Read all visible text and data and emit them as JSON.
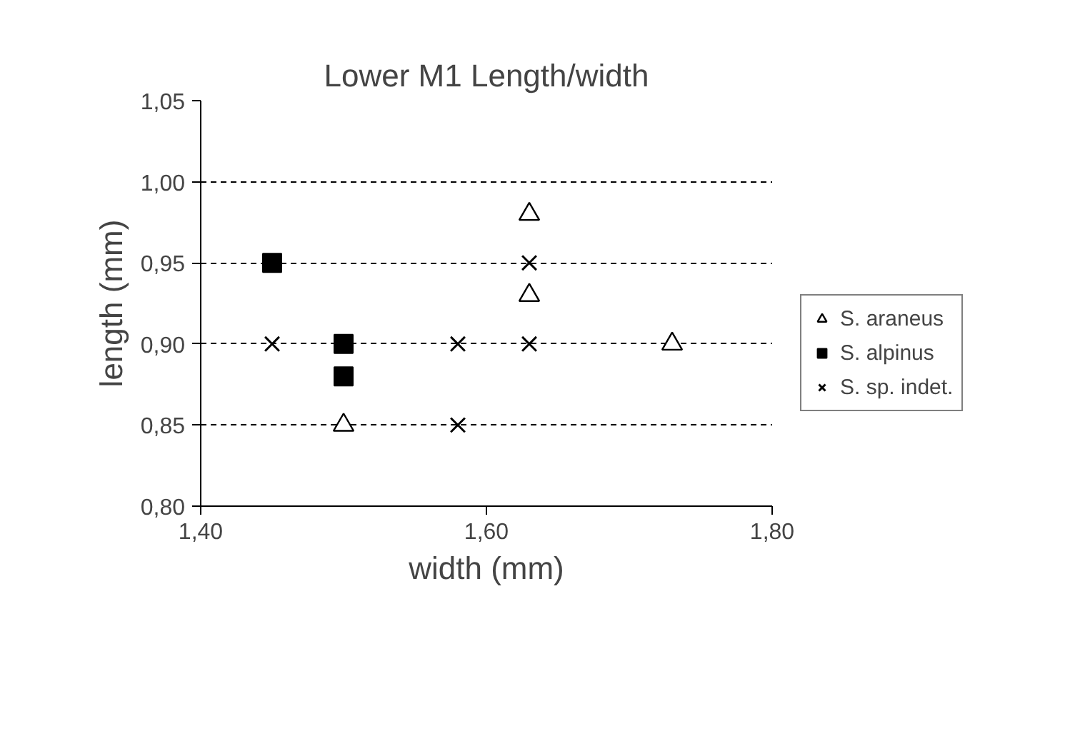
{
  "chart_data": {
    "type": "scatter",
    "title": "Lower M1 Length/width",
    "xlabel": "width (mm)",
    "ylabel": "length (mm)",
    "xlim": [
      1.4,
      1.8
    ],
    "ylim": [
      0.8,
      1.05
    ],
    "xticks": [
      {
        "value": 1.4,
        "label": "1,40"
      },
      {
        "value": 1.6,
        "label": "1,60"
      },
      {
        "value": 1.8,
        "label": "1,80"
      }
    ],
    "yticks": [
      {
        "value": 0.8,
        "label": "0,80"
      },
      {
        "value": 0.85,
        "label": "0,85"
      },
      {
        "value": 0.9,
        "label": "0,90"
      },
      {
        "value": 0.95,
        "label": "0,95"
      },
      {
        "value": 1.0,
        "label": "1,00"
      },
      {
        "value": 1.05,
        "label": "1,05"
      }
    ],
    "grid": "y",
    "legend": "right",
    "series": [
      {
        "name": "S. araneus",
        "color": "#000000",
        "marker": "triangle",
        "x": [
          1.5,
          1.63,
          1.63,
          1.73
        ],
        "values": [
          0.85,
          0.98,
          0.93,
          0.9
        ]
      },
      {
        "name": "S. alpinus",
        "color": "#000000",
        "marker": "square",
        "x": [
          1.45,
          1.5,
          1.5
        ],
        "values": [
          0.95,
          0.9,
          0.88
        ]
      },
      {
        "name": "S. sp. indet.",
        "color": "#000000",
        "marker": "cross",
        "x": [
          1.45,
          1.58,
          1.58,
          1.63,
          1.63
        ],
        "values": [
          0.9,
          0.9,
          0.85,
          0.95,
          0.9
        ]
      }
    ]
  }
}
